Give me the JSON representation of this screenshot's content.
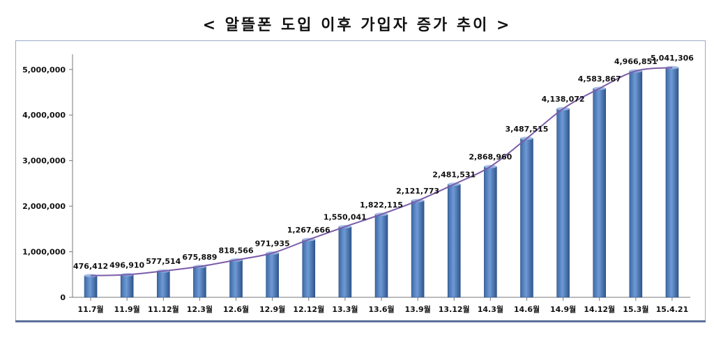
{
  "chart_data": {
    "type": "bar",
    "title": "< 알뜰폰 도입 이후 가입자 증가 추이 >",
    "categories": [
      "11.7월",
      "11.9월",
      "11.12월",
      "12.3월",
      "12.6월",
      "12.9월",
      "12.12월",
      "13.3월",
      "13.6월",
      "13.9월",
      "13.12월",
      "14.3월",
      "14.6월",
      "14.9월",
      "14.12월",
      "15.3월",
      "15.4.21"
    ],
    "values": [
      476412,
      496910,
      577514,
      675889,
      818566,
      971935,
      1267666,
      1550041,
      1822115,
      2121773,
      2481531,
      2868960,
      3487515,
      4138072,
      4583867,
      4966851,
      5041306
    ],
    "value_labels": [
      "476,412",
      "496,910",
      "577,514",
      "675,889",
      "818,566",
      "971,935",
      "1,267,666",
      "1,550,041",
      "1,822,115",
      "2,121,773",
      "2,481,531",
      "2,868,960",
      "3,487,515",
      "4,138,072",
      "4,583,867",
      "4,966,851",
      "5,041,306"
    ],
    "ylim": [
      0,
      5000000
    ],
    "yticks": [
      0,
      1000000,
      2000000,
      3000000,
      4000000,
      5000000
    ],
    "ytick_labels": [
      "0",
      "1,000,000",
      "2,000,000",
      "3,000,000",
      "4,000,000",
      "5,000,000"
    ],
    "overlay_line": true,
    "grid": false,
    "colors": {
      "bar": "#4f81bd",
      "line": "#7a5ca8"
    }
  }
}
